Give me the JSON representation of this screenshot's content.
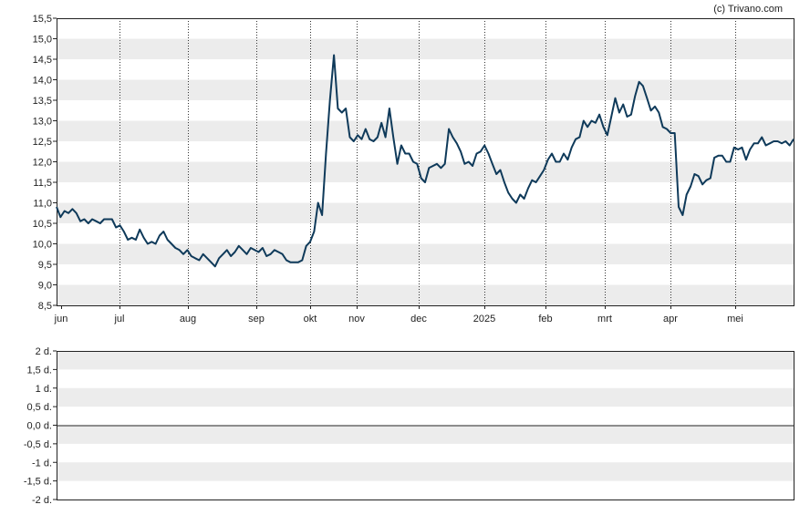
{
  "credit": "(c) Trivano.com",
  "chart_data": [
    {
      "type": "line",
      "title": "",
      "xlabel": "",
      "ylabel": "",
      "x_tick_labels": [
        "jun",
        "jul",
        "aug",
        "sep",
        "okt",
        "nov",
        "dec",
        "2025",
        "feb",
        "mrt",
        "apr",
        "mei"
      ],
      "y_tick_labels": [
        "8,5",
        "9,0",
        "9,5",
        "10,0",
        "10,5",
        "11,0",
        "11,5",
        "12,0",
        "12,5",
        "13,0",
        "13,5",
        "14,0",
        "14,5",
        "15,0",
        "15,5"
      ],
      "ylim": [
        8.5,
        15.5
      ],
      "grid": "alternating horizontal bands, dotted vertical month lines",
      "line_color": "#0f3a5a",
      "series": [
        {
          "values": [
            10.9,
            10.65,
            10.8,
            10.75,
            10.85,
            10.75,
            10.55,
            10.6,
            10.5,
            10.6,
            10.55,
            10.5,
            10.6,
            10.6,
            10.6,
            10.4,
            10.45,
            10.3,
            10.1,
            10.15,
            10.1,
            10.35,
            10.15,
            10.0,
            10.05,
            10.0,
            10.2,
            10.3,
            10.1,
            10.0,
            9.9,
            9.85,
            9.75,
            9.85,
            9.7,
            9.65,
            9.6,
            9.75,
            9.65,
            9.55,
            9.45,
            9.65,
            9.75,
            9.85,
            9.7,
            9.8,
            9.95,
            9.85,
            9.75,
            9.9,
            9.85,
            9.8,
            9.9,
            9.7,
            9.75,
            9.85,
            9.8,
            9.75,
            9.6,
            9.55,
            9.55,
            9.55,
            9.6,
            9.95,
            10.05,
            10.3,
            11.0,
            10.7,
            12.2,
            13.5,
            14.6,
            13.3,
            13.2,
            13.3,
            12.6,
            12.5,
            12.65,
            12.55,
            12.8,
            12.55,
            12.5,
            12.6,
            12.95,
            12.6,
            13.3,
            12.6,
            11.95,
            12.4,
            12.2,
            12.2,
            12.0,
            11.95,
            11.6,
            11.5,
            11.85,
            11.9,
            11.95,
            11.85,
            11.95,
            12.8,
            12.6,
            12.45,
            12.25,
            11.95,
            12.0,
            11.9,
            12.2,
            12.25,
            12.4,
            12.2,
            11.95,
            11.7,
            11.8,
            11.5,
            11.25,
            11.1,
            11.0,
            11.2,
            11.1,
            11.35,
            11.55,
            11.5,
            11.65,
            11.8,
            12.05,
            12.2,
            12.0,
            12.0,
            12.2,
            12.05,
            12.35,
            12.55,
            12.6,
            13.0,
            12.85,
            13.0,
            12.95,
            13.15,
            12.85,
            12.65,
            13.1,
            13.55,
            13.2,
            13.4,
            13.1,
            13.15,
            13.6,
            13.95,
            13.85,
            13.55,
            13.25,
            13.35,
            13.2,
            12.85,
            12.8,
            12.7,
            12.7,
            10.9,
            10.7,
            11.2,
            11.4,
            11.7,
            11.65,
            11.45,
            11.55,
            11.6,
            12.1,
            12.15,
            12.15,
            12.0,
            12.0,
            12.35,
            12.3,
            12.35,
            12.05,
            12.3,
            12.45,
            12.45,
            12.6,
            12.4,
            12.45,
            12.5,
            12.5,
            12.45,
            12.5,
            12.4,
            12.55
          ]
        }
      ]
    },
    {
      "type": "line",
      "title": "",
      "xlabel": "",
      "ylabel": "",
      "y_tick_labels": [
        "2 d.",
        "1,5 d.",
        "1 d.",
        "0,5 d.",
        "0,0 d.",
        "-0,5 d.",
        "-1 d.",
        "-1,5 d.",
        "-2 d."
      ],
      "ylim": [
        -2,
        2
      ],
      "grid": "alternating horizontal bands",
      "reference_line": 0,
      "series": []
    }
  ]
}
